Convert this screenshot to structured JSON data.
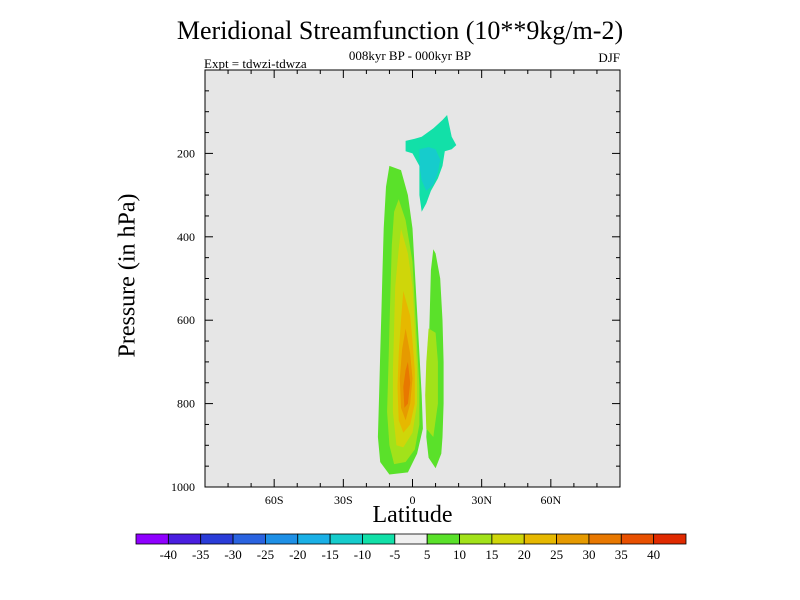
{
  "chart_data": {
    "type": "heatmap",
    "title": "Meridional Streamfunction (10**9kg/m-2)",
    "subtitle": "008kyr BP - 000kyr BP",
    "left_note": "Expt = tdwzi-tdwza",
    "right_note": "DJF",
    "xlabel": "Latitude",
    "ylabel": "Pressure (in hPa)",
    "xlim": [
      -90,
      90
    ],
    "ylim": [
      1000,
      0
    ],
    "x_ticks": [
      {
        "value": -60,
        "label": "60S"
      },
      {
        "value": -30,
        "label": "30S"
      },
      {
        "value": 0,
        "label": "0"
      },
      {
        "value": 30,
        "label": "30N"
      },
      {
        "value": 60,
        "label": "60N"
      }
    ],
    "y_ticks": [
      {
        "value": 200,
        "label": "200"
      },
      {
        "value": 400,
        "label": "400"
      },
      {
        "value": 600,
        "label": "600"
      },
      {
        "value": 800,
        "label": "800"
      },
      {
        "value": 1000,
        "label": "1000"
      }
    ],
    "background_color": "#e6e6e6",
    "colorbar": {
      "labels": [
        "-40",
        "-35",
        "-30",
        "-25",
        "-20",
        "-15",
        "-10",
        "-5",
        "5",
        "10",
        "15",
        "20",
        "25",
        "30",
        "35",
        "40"
      ],
      "colors": [
        "#8f00ff",
        "#4a1ee0",
        "#2a3cd8",
        "#2a63e0",
        "#1e90e6",
        "#1ab0e6",
        "#16cccc",
        "#12e0a8",
        "#f0f0f0",
        "#5ae12a",
        "#a2e21a",
        "#cfd60a",
        "#e6b800",
        "#e69a00",
        "#e87800",
        "#e85000",
        "#e02a00"
      ]
    },
    "contours": [
      {
        "level": 5,
        "color": "#5ae12a",
        "points": [
          [
            -10,
            230
          ],
          [
            -5,
            240
          ],
          [
            -2,
            300
          ],
          [
            0,
            380
          ],
          [
            1,
            480
          ],
          [
            2,
            580
          ],
          [
            3,
            680
          ],
          [
            4,
            780
          ],
          [
            4.5,
            860
          ],
          [
            2,
            920
          ],
          [
            -2,
            965
          ],
          [
            -10,
            970
          ],
          [
            -14,
            940
          ],
          [
            -15,
            880
          ],
          [
            -14.5,
            780
          ],
          [
            -14,
            680
          ],
          [
            -13.5,
            580
          ],
          [
            -13,
            480
          ],
          [
            -12.5,
            380
          ],
          [
            -11.5,
            280
          ]
        ]
      },
      {
        "level": 5,
        "color": "#5ae12a",
        "points": [
          [
            9,
            430
          ],
          [
            10,
            440
          ],
          [
            12,
            500
          ],
          [
            13,
            600
          ],
          [
            13.5,
            700
          ],
          [
            13.5,
            800
          ],
          [
            13,
            880
          ],
          [
            12.5,
            920
          ],
          [
            10,
            955
          ],
          [
            7,
            930
          ],
          [
            6,
            880
          ],
          [
            6.5,
            780
          ],
          [
            7,
            680
          ],
          [
            7.5,
            580
          ],
          [
            8,
            480
          ]
        ]
      },
      {
        "level": 10,
        "color": "#a2e21a",
        "points": [
          [
            -6,
            310
          ],
          [
            -3,
            360
          ],
          [
            0,
            460
          ],
          [
            1,
            560
          ],
          [
            2,
            660
          ],
          [
            3,
            760
          ],
          [
            3,
            850
          ],
          [
            1,
            910
          ],
          [
            -3,
            940
          ],
          [
            -8,
            945
          ],
          [
            -10,
            900
          ],
          [
            -11,
            820
          ],
          [
            -10.5,
            720
          ],
          [
            -10,
            620
          ],
          [
            -9.5,
            520
          ],
          [
            -9,
            420
          ],
          [
            -8,
            340
          ]
        ]
      },
      {
        "level": 10,
        "color": "#a2e21a",
        "points": [
          [
            7,
            620
          ],
          [
            10,
            630
          ],
          [
            11,
            700
          ],
          [
            11,
            800
          ],
          [
            9,
            880
          ],
          [
            6,
            860
          ],
          [
            5.5,
            780
          ],
          [
            6,
            700
          ]
        ]
      },
      {
        "level": 15,
        "color": "#cfd60a",
        "points": [
          [
            -5,
            380
          ],
          [
            -2,
            440
          ],
          [
            0,
            520
          ],
          [
            1,
            620
          ],
          [
            2,
            720
          ],
          [
            2,
            800
          ],
          [
            0,
            870
          ],
          [
            -4,
            905
          ],
          [
            -7,
            900
          ],
          [
            -8.5,
            820
          ],
          [
            -8.5,
            720
          ],
          [
            -8,
            620
          ],
          [
            -7.5,
            520
          ],
          [
            -6,
            430
          ]
        ]
      },
      {
        "level": 20,
        "color": "#e6b800",
        "points": [
          [
            -4,
            530
          ],
          [
            -1,
            590
          ],
          [
            0,
            650
          ],
          [
            1,
            720
          ],
          [
            1,
            800
          ],
          [
            -1,
            850
          ],
          [
            -4,
            870
          ],
          [
            -6,
            840
          ],
          [
            -6.5,
            760
          ],
          [
            -6,
            680
          ],
          [
            -5,
            600
          ]
        ]
      },
      {
        "level": 25,
        "color": "#e69a00",
        "points": [
          [
            -3,
            620
          ],
          [
            -1,
            680
          ],
          [
            0,
            740
          ],
          [
            -1,
            800
          ],
          [
            -3,
            840
          ],
          [
            -5,
            810
          ],
          [
            -5.5,
            740
          ],
          [
            -4.5,
            670
          ]
        ]
      },
      {
        "level": 30,
        "color": "#e87800",
        "points": [
          [
            -2,
            700
          ],
          [
            -1,
            750
          ],
          [
            -2,
            800
          ],
          [
            -3.5,
            810
          ],
          [
            -4,
            760
          ],
          [
            -3,
            720
          ]
        ]
      },
      {
        "level": -5,
        "color": "#12e0a8",
        "points": [
          [
            -3,
            170
          ],
          [
            1,
            165
          ],
          [
            4,
            160
          ],
          [
            9,
            140
          ],
          [
            13,
            120
          ],
          [
            15,
            108
          ],
          [
            17,
            160
          ],
          [
            19,
            180
          ],
          [
            17,
            190
          ],
          [
            14,
            195
          ],
          [
            13,
            230
          ],
          [
            11,
            260
          ],
          [
            8,
            290
          ],
          [
            6,
            320
          ],
          [
            4,
            340
          ],
          [
            3,
            300
          ],
          [
            3,
            230
          ],
          [
            0,
            200
          ],
          [
            -3,
            195
          ]
        ]
      },
      {
        "level": -10,
        "color": "#16cccc",
        "points": [
          [
            3,
            190
          ],
          [
            7,
            185
          ],
          [
            10,
            190
          ],
          [
            12,
            215
          ],
          [
            11,
            245
          ],
          [
            9,
            275
          ],
          [
            6,
            290
          ],
          [
            4,
            265
          ],
          [
            3,
            230
          ]
        ]
      }
    ]
  }
}
